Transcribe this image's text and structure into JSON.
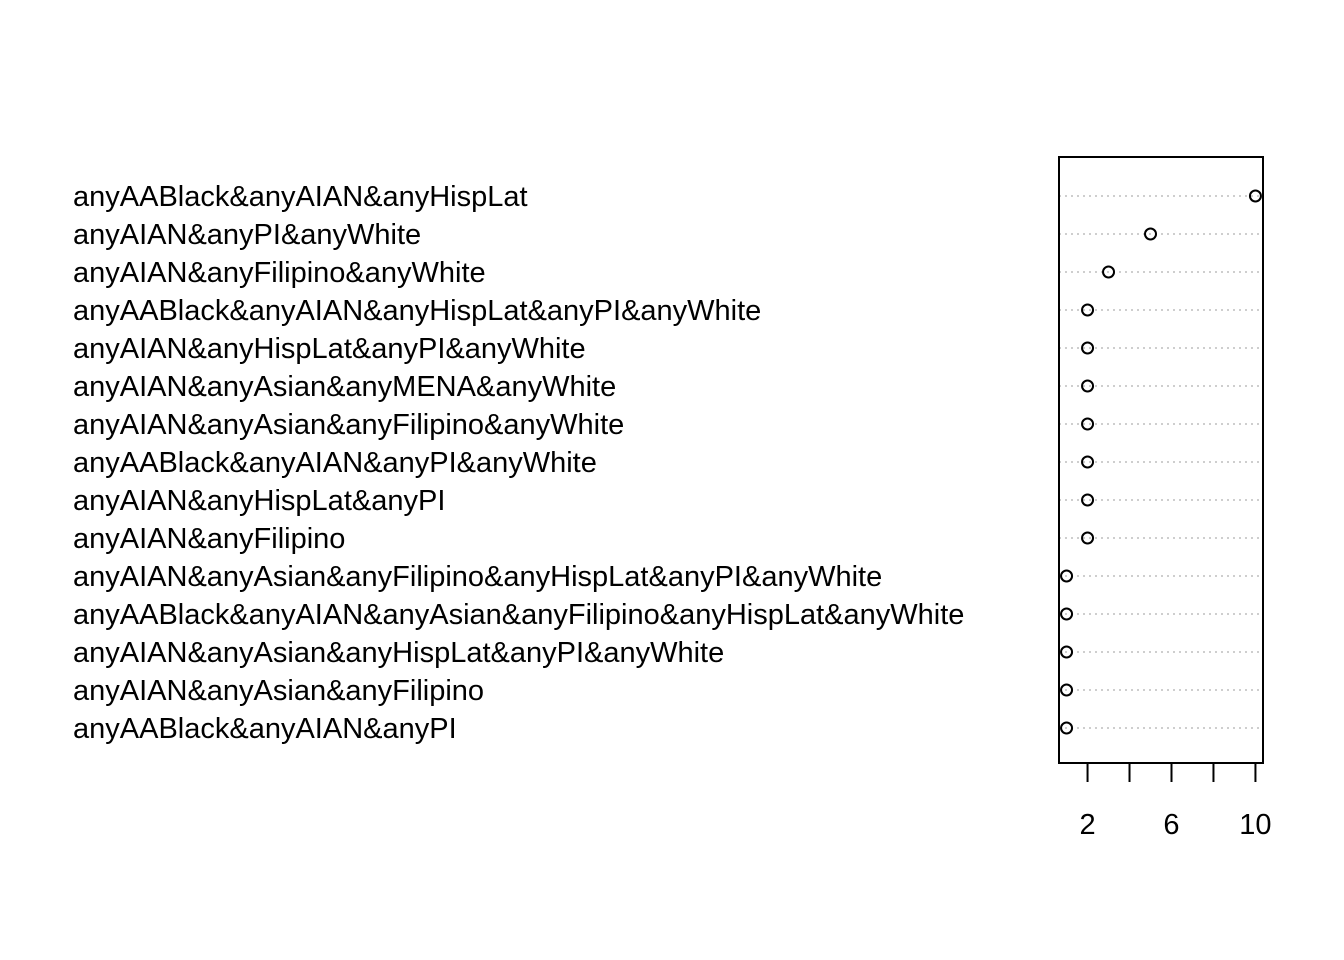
{
  "chart_data": {
    "type": "scatter",
    "subtype": "dotchart",
    "title": "",
    "xlabel": "",
    "ylabel": "",
    "categories": [
      "anyAABlack&anyAIAN&anyHispLat",
      "anyAIAN&anyPI&anyWhite",
      "anyAIAN&anyFilipino&anyWhite",
      "anyAABlack&anyAIAN&anyHispLat&anyPI&anyWhite",
      "anyAIAN&anyHispLat&anyPI&anyWhite",
      "anyAIAN&anyAsian&anyMENA&anyWhite",
      "anyAIAN&anyAsian&anyFilipino&anyWhite",
      "anyAABlack&anyAIAN&anyPI&anyWhite",
      "anyAIAN&anyHispLat&anyPI",
      "anyAIAN&anyFilipino",
      "anyAIAN&anyAsian&anyFilipino&anyHispLat&anyPI&anyWhite",
      "anyAABlack&anyAIAN&anyAsian&anyFilipino&anyHispLat&anyWhite",
      "anyAIAN&anyAsian&anyHispLat&anyPI&anyWhite",
      "anyAIAN&anyAsian&anyFilipino",
      "anyAABlack&anyAIAN&anyPI"
    ],
    "values": [
      10,
      5,
      3,
      2,
      2,
      2,
      2,
      2,
      2,
      2,
      1,
      1,
      1,
      1,
      1
    ],
    "xlim": [
      0.64,
      10.36
    ],
    "xticks": [
      2,
      4,
      6,
      8,
      10
    ],
    "xtick_labels": [
      "2",
      "",
      "6",
      "",
      "10"
    ],
    "grid": "dotted horizontal lines per category",
    "legend": "none",
    "marker": "open-circle",
    "colors": {
      "points": "#000000",
      "grid": "#bebebe",
      "frame": "#000000"
    }
  }
}
